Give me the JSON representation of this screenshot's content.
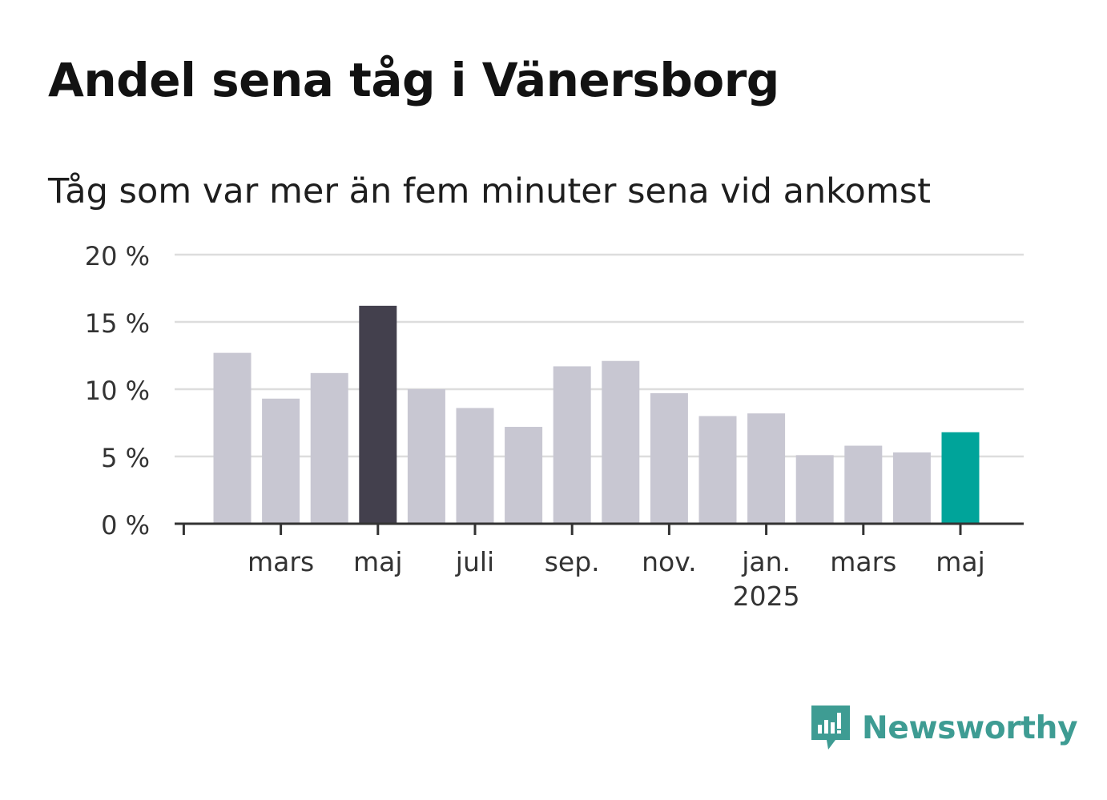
{
  "title": "Andel sena tåg i Vänersborg",
  "subtitle": "Tåg som var mer än fem minuter sena vid ankomst",
  "brand": {
    "name": "Newsworthy",
    "color": "#3e9c93",
    "icon": "newsworthy-logo-icon"
  },
  "colors": {
    "bar": "#c8c7d2",
    "highlight_max": "#43404d",
    "highlight_latest": "#00a49a",
    "grid": "#dddddd",
    "axis": "#333333"
  },
  "chart_data": {
    "type": "bar",
    "title": "Andel sena tåg i Vänersborg",
    "subtitle": "Tåg som var mer än fem minuter sena vid ankomst",
    "xlabel": "",
    "ylabel": "",
    "ylim": [
      0,
      20
    ],
    "grid": true,
    "y_ticks": [
      0,
      5,
      10,
      15,
      20
    ],
    "y_tick_labels": [
      "0 %",
      "5 %",
      "10 %",
      "15 %",
      "20 %"
    ],
    "categories": [
      "2024-02",
      "2024-03",
      "2024-04",
      "2024-05",
      "2024-06",
      "2024-07",
      "2024-08",
      "2024-09",
      "2024-10",
      "2024-11",
      "2024-12",
      "2025-01",
      "2025-02",
      "2025-03",
      "2025-04",
      "2025-05"
    ],
    "values": [
      12.7,
      9.3,
      11.2,
      16.2,
      10.0,
      8.6,
      7.2,
      11.7,
      12.1,
      9.7,
      8.0,
      8.2,
      5.1,
      5.8,
      5.3,
      6.8
    ],
    "highlight": {
      "max": "2024-05",
      "latest": "2025-05"
    },
    "x_tick_labels": [
      {
        "category": "2024-03",
        "label": "mars",
        "sublabel": ""
      },
      {
        "category": "2024-05",
        "label": "maj",
        "sublabel": ""
      },
      {
        "category": "2024-07",
        "label": "juli",
        "sublabel": ""
      },
      {
        "category": "2024-09",
        "label": "sep.",
        "sublabel": ""
      },
      {
        "category": "2024-11",
        "label": "nov.",
        "sublabel": ""
      },
      {
        "category": "2025-01",
        "label": "jan.",
        "sublabel": "2025"
      },
      {
        "category": "2025-03",
        "label": "mars",
        "sublabel": ""
      },
      {
        "category": "2025-05",
        "label": "maj",
        "sublabel": ""
      }
    ]
  }
}
